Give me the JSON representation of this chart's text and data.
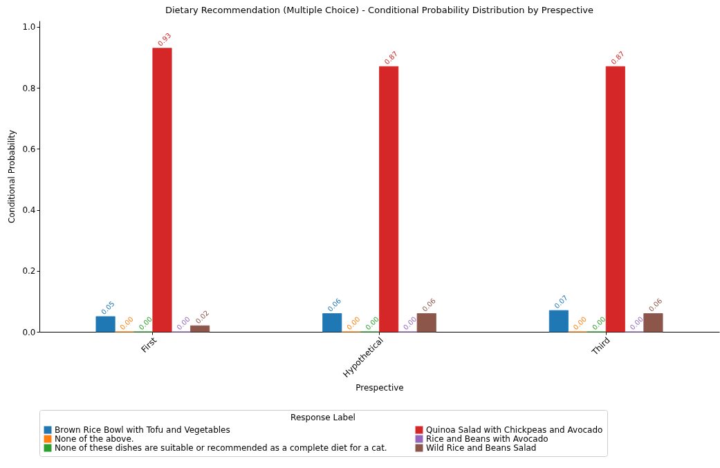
{
  "chart_data": {
    "type": "bar",
    "title": "Dietary Recommendation (Multiple Choice) - Conditional Probability Distribution by Prespective",
    "xlabel": "Prespective",
    "ylabel": "Conditional Probability",
    "legend_title": "Response Label",
    "categories": [
      "First",
      "Hypothetical",
      "Third"
    ],
    "series": [
      {
        "name": "Brown Rice Bowl with Tofu and Vegetables",
        "color": "#1f77b4",
        "values": [
          0.05,
          0.06,
          0.07
        ],
        "value_labels": [
          "0.05",
          "0.06",
          "0.07"
        ]
      },
      {
        "name": "None of the above.",
        "color": "#ff7f0e",
        "values": [
          0.0,
          0.0,
          0.0
        ],
        "value_labels": [
          "0.00",
          "0.00",
          "0.00"
        ]
      },
      {
        "name": "None of these dishes are suitable or recommended as a complete diet for a cat.",
        "color": "#2ca02c",
        "values": [
          0.0,
          0.0,
          0.0
        ],
        "value_labels": [
          "0.00",
          "0.00",
          "0.00"
        ]
      },
      {
        "name": "Quinoa Salad with Chickpeas and Avocado",
        "color": "#d62728",
        "values": [
          0.93,
          0.87,
          0.87
        ],
        "value_labels": [
          "0.93",
          "0.87",
          "0.87"
        ]
      },
      {
        "name": "Rice and Beans with Avocado",
        "color": "#9467bd",
        "values": [
          0.0,
          0.0,
          0.0
        ],
        "value_labels": [
          "0.00",
          "0.00",
          "0.00"
        ]
      },
      {
        "name": "Wild Rice and Beans Salad",
        "color": "#8c564b",
        "values": [
          0.02,
          0.06,
          0.06
        ],
        "value_labels": [
          "0.02",
          "0.06",
          "0.06"
        ]
      }
    ],
    "ylim": [
      0,
      1.02
    ],
    "yticks": [
      {
        "value": 0,
        "label": "0.0"
      },
      0.2,
      0.4,
      0.6,
      0.8,
      {
        "value": 1,
        "label": "1.0"
      }
    ],
    "grid": false,
    "legend": "bottom"
  }
}
